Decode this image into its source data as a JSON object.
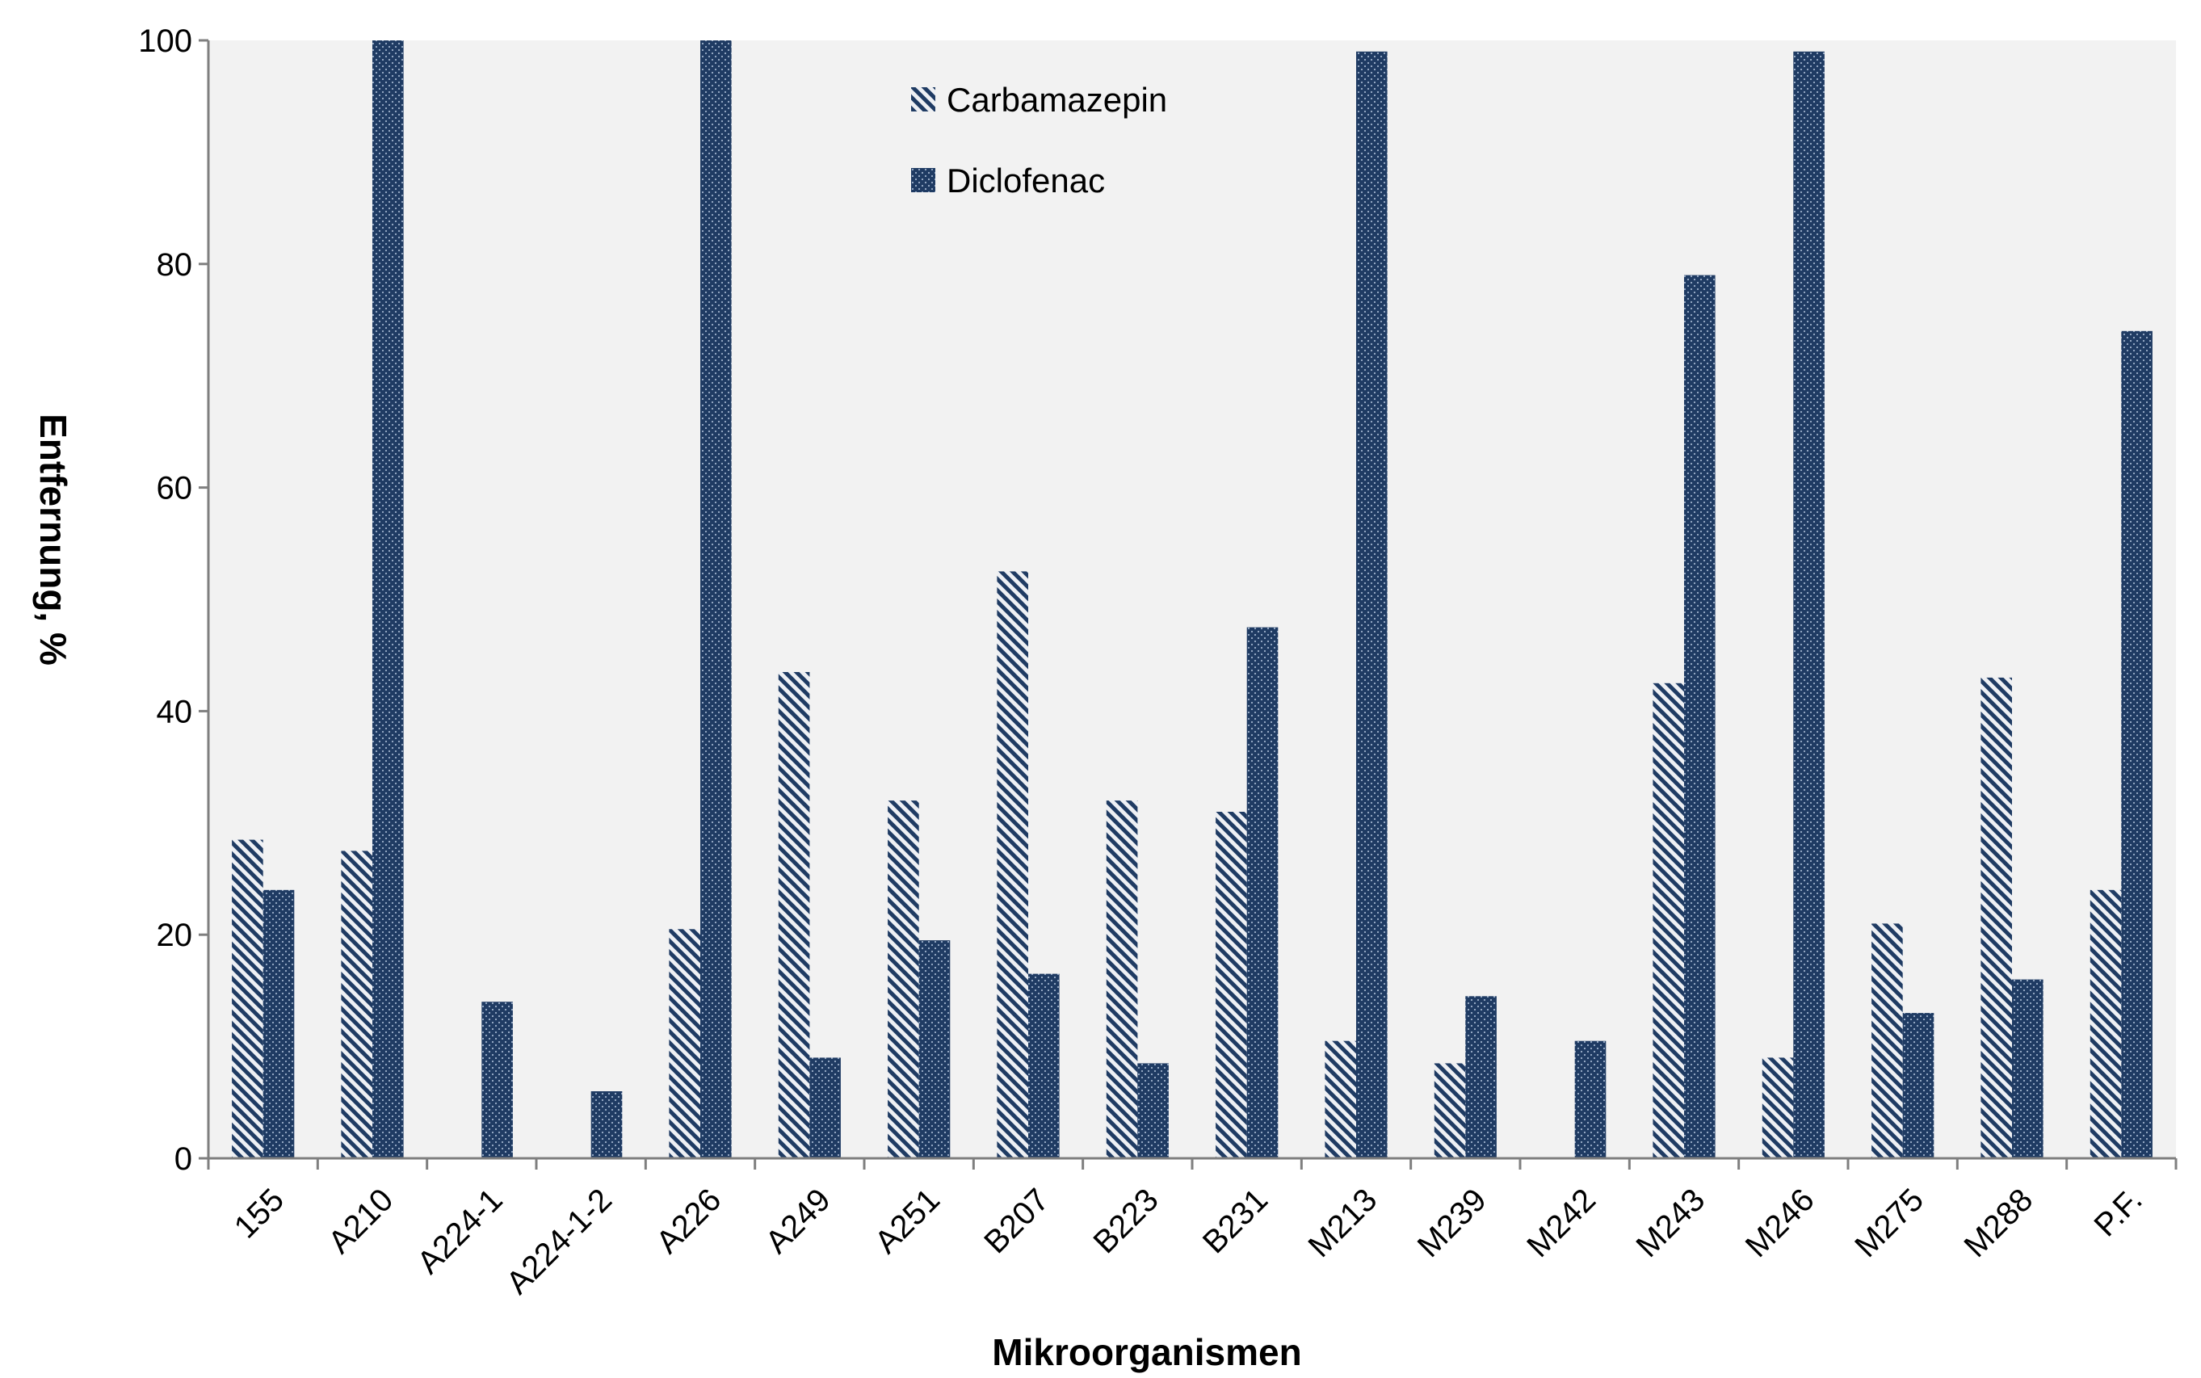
{
  "chart_data": {
    "type": "bar",
    "title": "",
    "xlabel": "Mikroorganismen",
    "ylabel": "Entfernung, %",
    "ylim": [
      0,
      100
    ],
    "yticks": [
      0,
      20,
      40,
      60,
      80,
      100
    ],
    "grid": false,
    "legend_position": "top-center",
    "categories": [
      "155",
      "A210",
      "A224-1",
      "A224-1-2",
      "A226",
      "A249",
      "A251",
      "B207",
      "B223",
      "B231",
      "M213",
      "M239",
      "M242",
      "M243",
      "M246",
      "M275",
      "M288",
      "P.F."
    ],
    "series": [
      {
        "name": "Carbamazepin",
        "values": [
          28.5,
          27.5,
          0,
          0,
          20.5,
          43.5,
          32,
          52.5,
          32,
          31,
          10.5,
          8.5,
          0,
          42.5,
          9,
          21,
          43,
          24
        ],
        "color": "#6e7f98",
        "pattern": "diagonal-stripes"
      },
      {
        "name": "Diclofenac",
        "values": [
          24,
          100,
          14,
          6,
          100,
          9,
          19.5,
          16.5,
          8.5,
          47.5,
          99,
          14.5,
          10.5,
          79,
          99,
          13,
          16,
          74
        ],
        "color": "#1f3b63",
        "pattern": "dotted"
      }
    ]
  },
  "colors": {
    "plot_background": "#f2f2f2",
    "axis": "#7f7f7f",
    "carbamazepin_stripe": "#1f3b63",
    "carbamazepin_base": "#f2f2f2",
    "diclofenac_fill": "#1f3b63"
  }
}
